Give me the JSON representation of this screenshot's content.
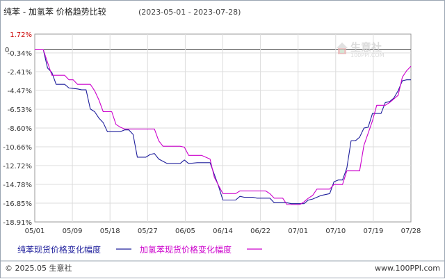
{
  "header": {
    "title": "纯苯 - 加氢苯 价格趋势比较",
    "date_range": "(2023-05-01 - 2023-07-28)"
  },
  "watermark": {
    "brand": "生意社",
    "url": "100PPI.COM"
  },
  "footer": {
    "copyright": "© 2025.05 生意社",
    "site": "www.100PPI.com"
  },
  "colors": {
    "series1": "#1d1d9b",
    "series2": "#cc00cc",
    "grid": "#dcdcdc",
    "zero_line": "#555555",
    "highlight_label": "#cc0000"
  },
  "chart_data": {
    "type": "line",
    "title": "纯苯 - 加氢苯 价格趋势比较",
    "subtitle": "(2023-05-01 - 2023-07-28)",
    "xlabel": "",
    "ylabel": "",
    "zero_label": "0",
    "x_ticks": [
      "05/01",
      "05/09",
      "05/18",
      "05/27",
      "06/05",
      "06/14",
      "06/22",
      "07/01",
      "07/10",
      "07/19",
      "07/28"
    ],
    "y_ticks": [
      "1.72%",
      "-0.34%",
      "-2.41%",
      "-4.47%",
      "-6.53%",
      "-8.60%",
      "-10.66%",
      "-12.72%",
      "-14.78%",
      "-16.85%",
      "-18.91%"
    ],
    "ylim": [
      -18.91,
      1.72
    ],
    "grid": true,
    "legend_position": "bottom",
    "series": [
      {
        "name": "纯苯现货价格变化幅度",
        "color": "#1d1d9b",
        "points": [
          [
            "2023-05-01",
            0.0
          ],
          [
            "2023-05-03",
            0.0
          ],
          [
            "2023-05-04",
            -2.0
          ],
          [
            "2023-05-05",
            -2.5
          ],
          [
            "2023-05-06",
            -3.8
          ],
          [
            "2023-05-08",
            -3.8
          ],
          [
            "2023-05-09",
            -4.2
          ],
          [
            "2023-05-11",
            -4.3
          ],
          [
            "2023-05-12",
            -4.4
          ],
          [
            "2023-05-13",
            -4.4
          ],
          [
            "2023-05-14",
            -6.5
          ],
          [
            "2023-05-15",
            -6.8
          ],
          [
            "2023-05-16",
            -7.5
          ],
          [
            "2023-05-17",
            -8.0
          ],
          [
            "2023-05-18",
            -9.0
          ],
          [
            "2023-05-21",
            -9.0
          ],
          [
            "2023-05-22",
            -8.8
          ],
          [
            "2023-05-23",
            -8.8
          ],
          [
            "2023-05-24",
            -9.3
          ],
          [
            "2023-05-25",
            -11.8
          ],
          [
            "2023-05-27",
            -11.8
          ],
          [
            "2023-05-28",
            -11.5
          ],
          [
            "2023-05-29",
            -11.4
          ],
          [
            "2023-05-30",
            -12.0
          ],
          [
            "2023-06-01",
            -12.5
          ],
          [
            "2023-06-04",
            -12.5
          ],
          [
            "2023-06-05",
            -12.1
          ],
          [
            "2023-06-06",
            -12.5
          ],
          [
            "2023-06-08",
            -12.4
          ],
          [
            "2023-06-11",
            -12.4
          ],
          [
            "2023-06-13",
            -15.0
          ],
          [
            "2023-06-14",
            -16.5
          ],
          [
            "2023-06-17",
            -16.5
          ],
          [
            "2023-06-18",
            -16.1
          ],
          [
            "2023-06-19",
            -16.2
          ],
          [
            "2023-06-21",
            -16.2
          ],
          [
            "2023-06-22",
            -16.3
          ],
          [
            "2023-06-25",
            -16.3
          ],
          [
            "2023-06-26",
            -16.8
          ],
          [
            "2023-06-29",
            -16.8
          ],
          [
            "2023-06-30",
            -16.9
          ],
          [
            "2023-07-03",
            -16.9
          ],
          [
            "2023-07-04",
            -16.5
          ],
          [
            "2023-07-05",
            -16.4
          ],
          [
            "2023-07-07",
            -16.0
          ],
          [
            "2023-07-09",
            -15.8
          ],
          [
            "2023-07-10",
            -14.5
          ],
          [
            "2023-07-11",
            -14.3
          ],
          [
            "2023-07-12",
            -14.3
          ],
          [
            "2023-07-13",
            -13.0
          ],
          [
            "2023-07-14",
            -10.0
          ],
          [
            "2023-07-15",
            -10.0
          ],
          [
            "2023-07-16",
            -9.6
          ],
          [
            "2023-07-17",
            -8.6
          ],
          [
            "2023-07-18",
            -8.5
          ],
          [
            "2023-07-19",
            -7.0
          ],
          [
            "2023-07-21",
            -7.0
          ],
          [
            "2023-07-22",
            -5.8
          ],
          [
            "2023-07-23",
            -5.7
          ],
          [
            "2023-07-24",
            -5.3
          ],
          [
            "2023-07-25",
            -4.5
          ],
          [
            "2023-07-26",
            -3.4
          ],
          [
            "2023-07-27",
            -3.3
          ],
          [
            "2023-07-28",
            -3.3
          ]
        ]
      },
      {
        "name": "加氢苯现货价格变化幅度",
        "color": "#cc00cc",
        "points": [
          [
            "2023-05-01",
            0.0
          ],
          [
            "2023-05-03",
            0.0
          ],
          [
            "2023-05-05",
            -2.8
          ],
          [
            "2023-05-08",
            -2.8
          ],
          [
            "2023-05-09",
            -3.3
          ],
          [
            "2023-05-10",
            -3.3
          ],
          [
            "2023-05-11",
            -3.8
          ],
          [
            "2023-05-14",
            -3.8
          ],
          [
            "2023-05-15",
            -4.5
          ],
          [
            "2023-05-16",
            -5.5
          ],
          [
            "2023-05-17",
            -6.8
          ],
          [
            "2023-05-19",
            -6.8
          ],
          [
            "2023-05-20",
            -8.2
          ],
          [
            "2023-05-21",
            -8.5
          ],
          [
            "2023-05-22",
            -8.7
          ],
          [
            "2023-05-29",
            -8.7
          ],
          [
            "2023-05-30",
            -10.0
          ],
          [
            "2023-05-31",
            -10.6
          ],
          [
            "2023-06-04",
            -10.6
          ],
          [
            "2023-06-05",
            -10.7
          ],
          [
            "2023-06-06",
            -11.6
          ],
          [
            "2023-06-09",
            -11.6
          ],
          [
            "2023-06-11",
            -12.0
          ],
          [
            "2023-06-12",
            -14.0
          ],
          [
            "2023-06-14",
            -15.8
          ],
          [
            "2023-06-17",
            -15.8
          ],
          [
            "2023-06-18",
            -15.5
          ],
          [
            "2023-06-24",
            -15.5
          ],
          [
            "2023-06-25",
            -15.8
          ],
          [
            "2023-06-26",
            -16.3
          ],
          [
            "2023-06-28",
            -16.3
          ],
          [
            "2023-06-29",
            -17.0
          ],
          [
            "2023-07-02",
            -17.0
          ],
          [
            "2023-07-03",
            -16.7
          ],
          [
            "2023-07-04",
            -16.3
          ],
          [
            "2023-07-05",
            -16.0
          ],
          [
            "2023-07-06",
            -15.3
          ],
          [
            "2023-07-09",
            -15.3
          ],
          [
            "2023-07-10",
            -14.8
          ],
          [
            "2023-07-12",
            -14.8
          ],
          [
            "2023-07-13",
            -13.3
          ],
          [
            "2023-07-16",
            -13.3
          ],
          [
            "2023-07-17",
            -10.5
          ],
          [
            "2023-07-19",
            -7.8
          ],
          [
            "2023-07-20",
            -6.1
          ],
          [
            "2023-07-22",
            -6.1
          ],
          [
            "2023-07-23",
            -5.8
          ],
          [
            "2023-07-25",
            -5.0
          ],
          [
            "2023-07-26",
            -3.0
          ],
          [
            "2023-07-27",
            -2.3
          ],
          [
            "2023-07-28",
            -1.8
          ]
        ]
      }
    ]
  }
}
